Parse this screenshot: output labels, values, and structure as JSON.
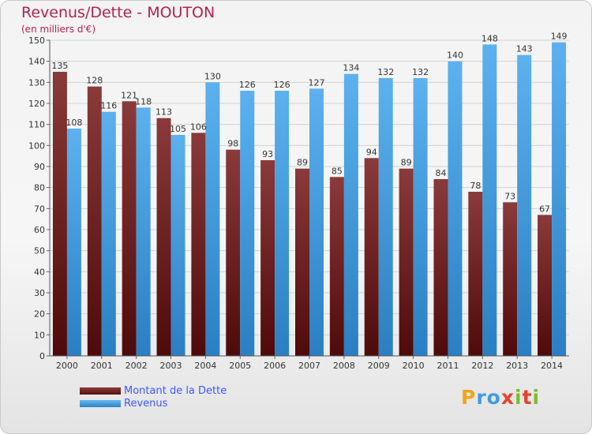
{
  "title": "Revenus/Dette - MOUTON",
  "subtitle": "(en milliers d'€)",
  "logo": {
    "letters": [
      "P",
      "r",
      "o",
      "x",
      "i",
      "t",
      "i"
    ],
    "colors": [
      "#f2a31b",
      "#3f9de0",
      "#3f9de0",
      "#e8422c",
      "#7cbf2f",
      "#e8422c",
      "#7cbf2f"
    ]
  },
  "chart_data": {
    "type": "bar",
    "categories": [
      "2000",
      "2001",
      "2002",
      "2003",
      "2004",
      "2005",
      "2006",
      "2007",
      "2008",
      "2009",
      "2010",
      "2011",
      "2012",
      "2013",
      "2014"
    ],
    "series": [
      {
        "name": "Montant de la Dette",
        "color": "#7a2626",
        "values": [
          135,
          128,
          121,
          113,
          106,
          98,
          93,
          89,
          85,
          94,
          89,
          84,
          78,
          73,
          67
        ]
      },
      {
        "name": "Revenus",
        "color": "#4aa3e6",
        "values": [
          108,
          116,
          118,
          105,
          130,
          126,
          126,
          127,
          134,
          132,
          132,
          140,
          148,
          143,
          149
        ]
      }
    ],
    "ylim": [
      0,
      150
    ],
    "yticks": [
      0,
      10,
      20,
      30,
      40,
      50,
      60,
      70,
      80,
      90,
      100,
      110,
      120,
      130,
      140,
      150
    ],
    "grid": true,
    "legend": "bottom-left"
  }
}
